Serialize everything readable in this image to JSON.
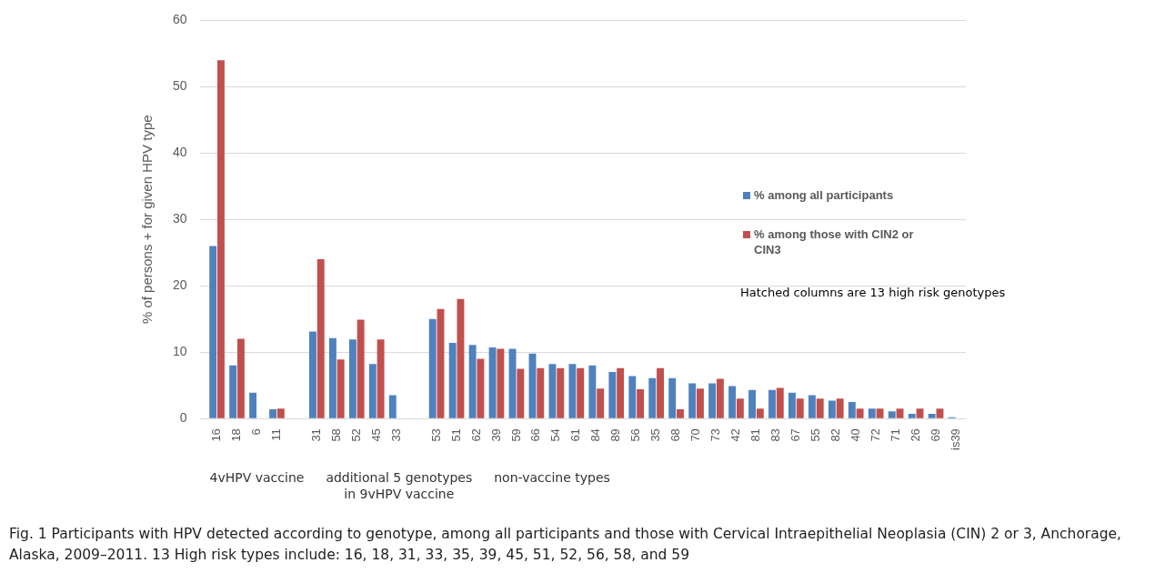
{
  "chart_data": {
    "type": "bar",
    "ylabel": "% of persons + for given HPV type",
    "categories": [
      "16",
      "18",
      "6",
      "11",
      null,
      "31",
      "58",
      "52",
      "45",
      "33",
      null,
      "53",
      "51",
      "62",
      "39",
      "59",
      "66",
      "54",
      "61",
      "84",
      "89",
      "56",
      "35",
      "68",
      "70",
      "73",
      "42",
      "81",
      "83",
      "67",
      "55",
      "82",
      "40",
      "72",
      "71",
      "26",
      "69",
      "is39"
    ],
    "series": [
      {
        "name": "% among all participants",
        "color": "#4f81bd",
        "values": [
          26,
          8,
          3.9,
          1.4,
          null,
          13.1,
          12.1,
          11.9,
          8.2,
          3.5,
          null,
          15,
          11.4,
          11.1,
          10.7,
          10.5,
          9.8,
          8.2,
          8.2,
          8,
          7,
          6.4,
          6.1,
          6.1,
          5.3,
          5.3,
          4.9,
          4.3,
          4.3,
          3.9,
          3.5,
          2.7,
          2.5,
          1.5,
          1.1,
          0.7,
          0.7,
          0.2
        ]
      },
      {
        "name": "% among those with CIN2 or CIN3",
        "color": "#c0504d",
        "values": [
          54,
          12,
          null,
          1.5,
          null,
          24,
          8.9,
          14.9,
          11.9,
          null,
          null,
          16.5,
          18,
          9,
          10.5,
          7.5,
          7.6,
          7.6,
          7.6,
          4.5,
          7.6,
          4.4,
          7.6,
          1.4,
          4.5,
          6,
          3,
          1.5,
          4.6,
          3,
          3,
          3,
          1.5,
          1.5,
          1.5,
          1.5,
          1.5,
          null
        ]
      }
    ],
    "ylim": [
      0,
      60
    ],
    "yticks": [
      0,
      10,
      20,
      30,
      40,
      50,
      60
    ],
    "grid": "y",
    "legend": "right",
    "annotations": [
      "4vHPV vaccine",
      "additional 5 genotypes\nin 9vHPV vaccine",
      "non-vaccine types",
      "Hatched columns are 13 high risk genotypes",
      "Fig. 1 Participants with HPV detected according to genotype, among all participants and those with Cervical Intraepithelial Neoplasia (CIN) 2 or 3, Anchorage, Alaska, 2009–2011. 13 High risk types include: 16, 18, 31, 33, 35, 39, 45, 51, 52, 56, 58, and 59"
    ]
  }
}
